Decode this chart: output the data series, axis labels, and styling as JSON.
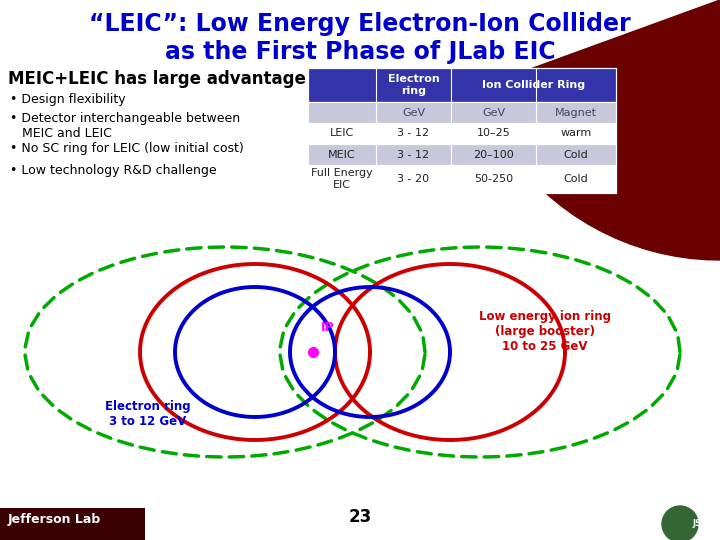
{
  "title_line1": "“LEIC”: Low Energy Electron-Ion Collider",
  "title_line2": "as the First Phase of JLab EIC",
  "title_color": "#0000CC",
  "subtitle": "MEIC+LEIC has large advantage",
  "bullet_color": "#000000",
  "table_header_bg": "#3333AA",
  "table_header_fg": "#FFFFFF",
  "table_alt_row_bg": "#C8C8DC",
  "table_row_bg": "#FFFFFF",
  "bg_color": "#FFFFFF",
  "page_number": "23",
  "jlab_text": "Jefferson Lab",
  "dark_red": "#6B0000",
  "blue_ring": "#0000CC",
  "red_ring": "#CC0000",
  "green_dash": "#00AA00",
  "ip_color": "#FF00FF"
}
